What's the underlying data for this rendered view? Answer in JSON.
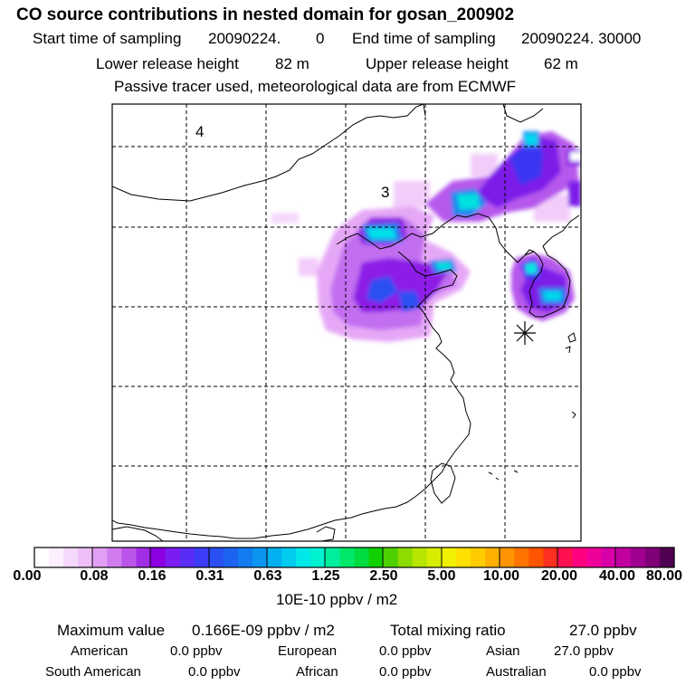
{
  "header": {
    "title": "CO  source contributions in nested domain for gosan_200902",
    "start_label": "Start time of sampling",
    "start_value": "20090224.",
    "start_hour": "0",
    "end_label": "End time of sampling",
    "end_value": "20090224. 30000",
    "lower_label": "Lower release height",
    "lower_value": "82 m",
    "upper_label": "Upper release height",
    "upper_value": "62 m",
    "tracer_note": "Passive tracer used, meteorological data are from ECMWF"
  },
  "map": {
    "region_labels": [
      "4",
      "3"
    ],
    "station_marker": "asterisk-icon"
  },
  "colorbar": {
    "ticks": [
      "0.00",
      "0.08",
      "0.16",
      "0.31",
      "0.63",
      "1.25",
      "2.50",
      "5.00",
      "10.00",
      "20.00",
      "40.00",
      "80.00"
    ],
    "unit": "10E-10 ppbv / m2",
    "colors": [
      "#ffffff",
      "#fbeffd",
      "#f5d9fb",
      "#eebff8",
      "#e2a0f4",
      "#d07cef",
      "#bb55ea",
      "#a22de6",
      "#8b00e0",
      "#7a1cf2",
      "#5a2cf6",
      "#3c3cf6",
      "#2a4ff3",
      "#1e63f0",
      "#127cf0",
      "#0a95f0",
      "#00b0f0",
      "#00ccf0",
      "#00e8e8",
      "#00f2d0",
      "#00ee9e",
      "#00e86a",
      "#00dc40",
      "#10d000",
      "#4ed000",
      "#8cdc00",
      "#b8e600",
      "#d8ee00",
      "#f0f000",
      "#ffe000",
      "#ffcc00",
      "#ffb000",
      "#ff9400",
      "#ff7400",
      "#ff5400",
      "#ff3020",
      "#ff1050",
      "#ff0080",
      "#f0009a",
      "#d800a8",
      "#c000a0",
      "#a00090",
      "#800078",
      "#500050"
    ]
  },
  "summary": {
    "max_label": "Maximum value",
    "max_value": "0.166E-09 ppbv / m2",
    "total_label": "Total mixing ratio",
    "total_value": "27.0 ppbv",
    "american_label": "American",
    "american_value": "0.0 ppbv",
    "european_label": "European",
    "european_value": "0.0 ppbv",
    "asian_label": "Asian",
    "asian_value": "27.0 ppbv",
    "south_american_label": "South American",
    "south_american_value": "0.0 ppbv",
    "african_label": "African",
    "african_value": "0.0 ppbv",
    "australian_label": "Australian",
    "australian_value": "0.0 ppbv"
  }
}
